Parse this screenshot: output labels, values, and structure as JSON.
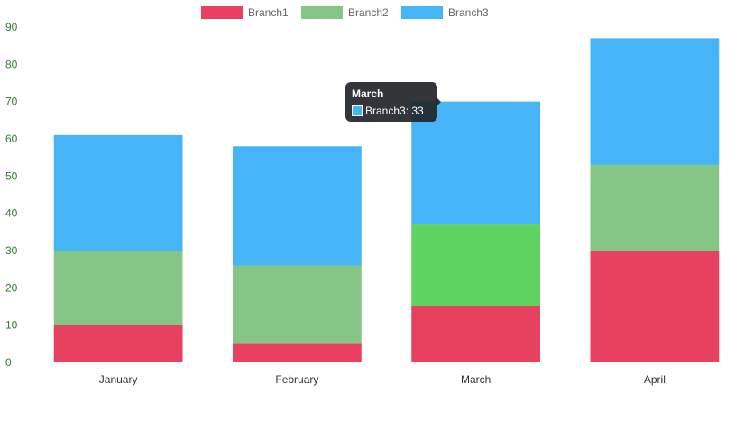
{
  "chart_data": {
    "type": "bar",
    "stacked": true,
    "title": "",
    "xlabel": "",
    "ylabel": "",
    "categories": [
      "January",
      "February",
      "March",
      "April"
    ],
    "series": [
      {
        "name": "Branch1",
        "values": [
          10,
          5,
          15,
          30
        ],
        "color": "#e8405f"
      },
      {
        "name": "Branch2",
        "values": [
          20,
          21,
          22,
          23
        ],
        "color": "#85c585"
      },
      {
        "name": "Branch3",
        "values": [
          31,
          32,
          33,
          34
        ],
        "color": "#45b5f7"
      }
    ],
    "ylim": [
      0,
      90
    ],
    "yticks": [
      0,
      10,
      20,
      30,
      40,
      50,
      60,
      70,
      80,
      90
    ],
    "grid": false,
    "legend_position": "top-center",
    "highlight": {
      "category": "March",
      "series": "Branch2",
      "color": "#5fd35f"
    },
    "tooltip": {
      "title": "March",
      "series": "Branch3",
      "value": 33,
      "label": "Branch3: 33",
      "color": "#45b5f7"
    }
  }
}
